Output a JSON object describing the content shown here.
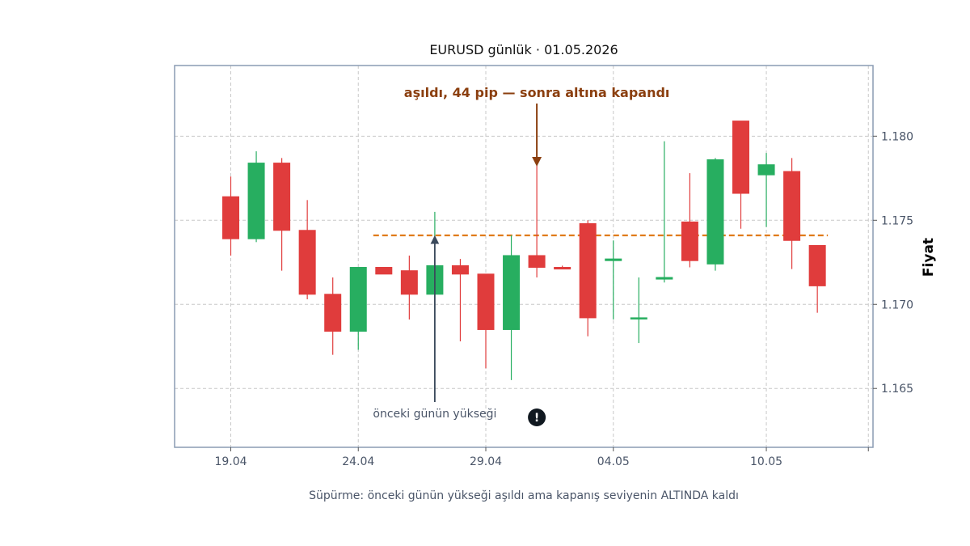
{
  "chart_data": {
    "type": "candlestick",
    "title": "EURUSD günlük · 01.05.2026",
    "ylabel": "Fiyat",
    "footer": "Süpürme: önceki günün yükseği aşıldı ama kapanış seviyenin ALTINDA kaldı",
    "ylim": [
      1.1615,
      1.1842
    ],
    "yticks": [
      "1.165",
      "1.170",
      "1.175",
      "1.180"
    ],
    "xticks": [
      "19.04",
      "24.04",
      "29.04",
      "04.05",
      "10.05"
    ],
    "grid": true,
    "up_color": "#27ae60",
    "down_color": "#e03c3c",
    "level": {
      "value": 1.1741,
      "from_index": 6,
      "to_index": 23,
      "color": "#e07b1a"
    },
    "annotations": {
      "sweep": {
        "text": "aşıldı, 44 pip — sonra altına kapandı",
        "index": 12,
        "color": "#8b3f0f"
      },
      "prev_high": {
        "text": "önceki günün yükseği",
        "index": 8
      },
      "marker": {
        "symbol": "!",
        "index": 12
      }
    },
    "candles": [
      {
        "date": "19.04",
        "open": 1.1764,
        "high": 1.1776,
        "low": 1.1729,
        "close": 1.1739
      },
      {
        "date": "20.04",
        "open": 1.1739,
        "high": 1.1791,
        "low": 1.1737,
        "close": 1.1784
      },
      {
        "date": "21.04",
        "open": 1.1784,
        "high": 1.1787,
        "low": 1.172,
        "close": 1.1744
      },
      {
        "date": "22.04",
        "open": 1.1744,
        "high": 1.1762,
        "low": 1.1703,
        "close": 1.1706
      },
      {
        "date": "23.04",
        "open": 1.1706,
        "high": 1.1716,
        "low": 1.167,
        "close": 1.1684
      },
      {
        "date": "24.04",
        "open": 1.1684,
        "high": 1.1722,
        "low": 1.1673,
        "close": 1.1722
      },
      {
        "date": "25.04",
        "open": 1.1722,
        "high": 1.1722,
        "low": 1.1718,
        "close": 1.1718
      },
      {
        "date": "26.04",
        "open": 1.172,
        "high": 1.1729,
        "low": 1.1691,
        "close": 1.1706
      },
      {
        "date": "27.04",
        "open": 1.1706,
        "high": 1.1755,
        "low": 1.1706,
        "close": 1.1723
      },
      {
        "date": "28.04",
        "open": 1.1723,
        "high": 1.1727,
        "low": 1.1678,
        "close": 1.1718
      },
      {
        "date": "29.04",
        "open": 1.1718,
        "high": 1.1718,
        "low": 1.1662,
        "close": 1.1685
      },
      {
        "date": "30.04",
        "open": 1.1685,
        "high": 1.1741,
        "low": 1.1655,
        "close": 1.1729
      },
      {
        "date": "01.05",
        "open": 1.1729,
        "high": 1.1785,
        "low": 1.1716,
        "close": 1.1722
      },
      {
        "date": "02.05",
        "open": 1.1722,
        "high": 1.1723,
        "low": 1.1721,
        "close": 1.1721
      },
      {
        "date": "03.05",
        "open": 1.1748,
        "high": 1.175,
        "low": 1.1681,
        "close": 1.1692
      },
      {
        "date": "04.05",
        "open": 1.1726,
        "high": 1.1738,
        "low": 1.1691,
        "close": 1.1727
      },
      {
        "date": "05.05",
        "open": 1.1692,
        "high": 1.1716,
        "low": 1.1677,
        "close": 1.1692
      },
      {
        "date": "06.05",
        "open": 1.1715,
        "high": 1.1797,
        "low": 1.1713,
        "close": 1.1716
      },
      {
        "date": "07.05",
        "open": 1.1749,
        "high": 1.1778,
        "low": 1.1722,
        "close": 1.1726
      },
      {
        "date": "08.05",
        "open": 1.1724,
        "high": 1.1787,
        "low": 1.172,
        "close": 1.1786
      },
      {
        "date": "09.05",
        "open": 1.1809,
        "high": 1.1809,
        "low": 1.1745,
        "close": 1.1766
      },
      {
        "date": "10.05",
        "open": 1.1777,
        "high": 1.179,
        "low": 1.1746,
        "close": 1.1783
      },
      {
        "date": "11.05",
        "open": 1.1779,
        "high": 1.1787,
        "low": 1.1721,
        "close": 1.1738
      },
      {
        "date": "12.05",
        "open": 1.1735,
        "high": 1.1735,
        "low": 1.1695,
        "close": 1.1711
      }
    ]
  }
}
